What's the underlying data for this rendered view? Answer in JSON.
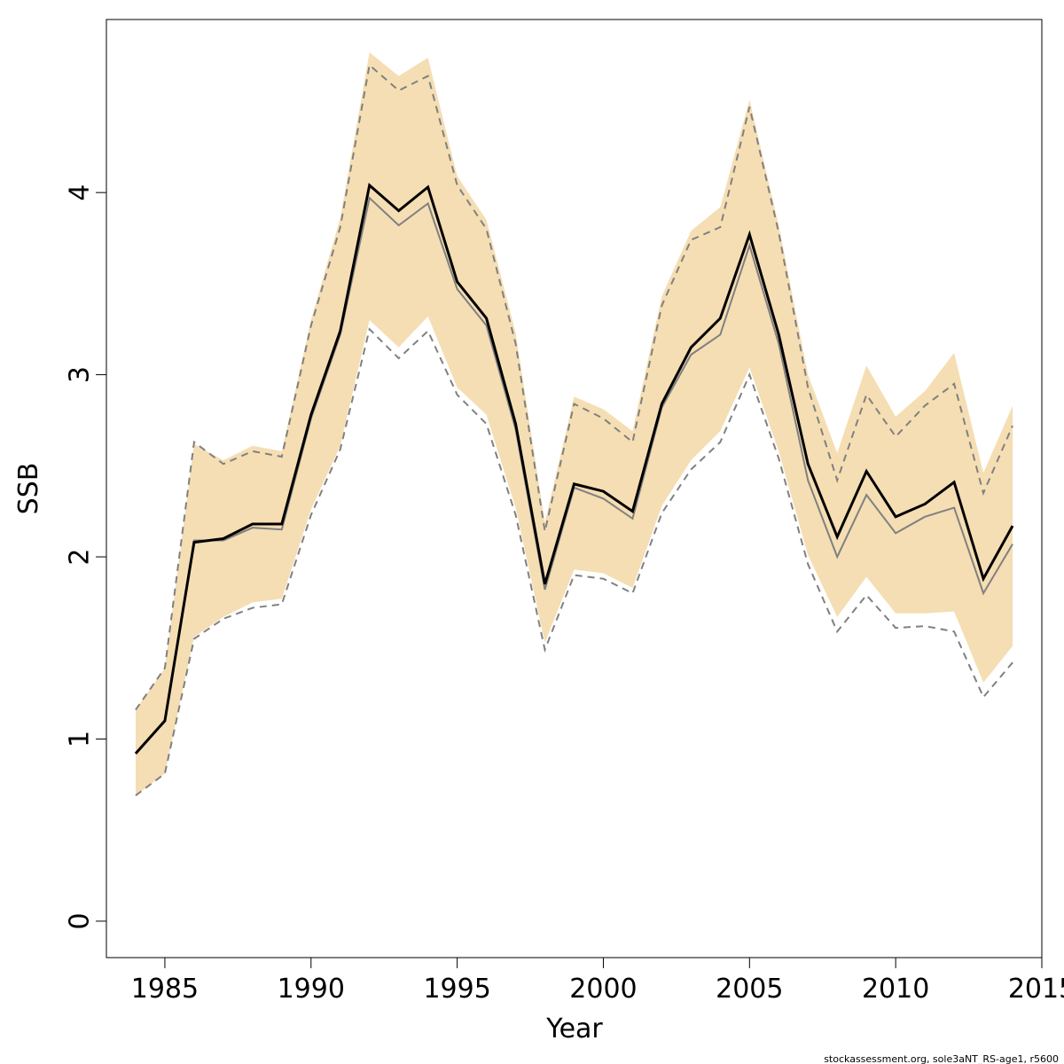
{
  "chart_data": {
    "type": "line",
    "xlabel": "Year",
    "ylabel": "SSB",
    "xlim": [
      1983,
      2015
    ],
    "ylim": [
      -0.2,
      4.95
    ],
    "x_ticks": [
      1985,
      1990,
      1995,
      2000,
      2005,
      2010,
      2015
    ],
    "y_ticks": [
      0,
      1,
      2,
      3,
      4
    ],
    "footer": "stockassessment.org, sole3aNT_RS-age1, r5600",
    "colors": {
      "band": "#f5deb3",
      "main": "#000000",
      "secondary": "#808080"
    },
    "x": [
      1984,
      1985,
      1986,
      1987,
      1988,
      1989,
      1990,
      1991,
      1992,
      1993,
      1994,
      1995,
      1996,
      1997,
      1998,
      1999,
      2000,
      2001,
      2002,
      2003,
      2004,
      2005,
      2006,
      2007,
      2008,
      2009,
      2010,
      2011,
      2012,
      2013,
      2014
    ],
    "series": [
      {
        "role": "band_upper",
        "values": [
          1.16,
          1.39,
          2.62,
          2.53,
          2.61,
          2.58,
          3.3,
          3.86,
          4.77,
          4.64,
          4.74,
          4.09,
          3.85,
          3.23,
          2.19,
          2.88,
          2.81,
          2.69,
          3.43,
          3.79,
          3.92,
          4.51,
          3.82,
          3.0,
          2.57,
          3.05,
          2.77,
          2.91,
          3.12,
          2.46,
          2.83
        ]
      },
      {
        "role": "band_lower",
        "values": [
          0.69,
          0.81,
          1.56,
          1.67,
          1.75,
          1.77,
          2.26,
          2.61,
          3.3,
          3.15,
          3.32,
          2.93,
          2.78,
          2.27,
          1.53,
          1.93,
          1.91,
          1.83,
          2.28,
          2.53,
          2.69,
          3.04,
          2.58,
          2.01,
          1.67,
          1.89,
          1.69,
          1.69,
          1.7,
          1.31,
          1.51
        ]
      },
      {
        "role": "main",
        "values": [
          0.92,
          1.1,
          2.08,
          2.1,
          2.18,
          2.18,
          2.78,
          3.24,
          4.04,
          3.9,
          4.03,
          3.51,
          3.31,
          2.73,
          1.85,
          2.4,
          2.36,
          2.25,
          2.84,
          3.15,
          3.31,
          3.77,
          3.22,
          2.51,
          2.11,
          2.47,
          2.22,
          2.29,
          2.41,
          1.88,
          2.17
        ]
      },
      {
        "role": "secondary",
        "values": [
          0.92,
          1.1,
          2.09,
          2.09,
          2.16,
          2.15,
          2.76,
          3.22,
          3.97,
          3.82,
          3.94,
          3.47,
          3.27,
          2.7,
          1.82,
          2.38,
          2.32,
          2.21,
          2.82,
          3.11,
          3.22,
          3.71,
          3.17,
          2.42,
          2.0,
          2.34,
          2.13,
          2.22,
          2.27,
          1.8,
          2.07
        ]
      },
      {
        "role": "upper_dashed",
        "values": [
          1.16,
          1.39,
          2.63,
          2.51,
          2.58,
          2.55,
          3.27,
          3.81,
          4.7,
          4.56,
          4.64,
          4.04,
          3.8,
          3.17,
          2.14,
          2.84,
          2.76,
          2.63,
          3.38,
          3.74,
          3.81,
          4.47,
          3.78,
          2.93,
          2.42,
          2.89,
          2.66,
          2.83,
          2.95,
          2.35,
          2.72
        ]
      },
      {
        "role": "lower_dashed",
        "values": [
          0.69,
          0.81,
          1.55,
          1.66,
          1.72,
          1.74,
          2.23,
          2.59,
          3.25,
          3.09,
          3.24,
          2.89,
          2.73,
          2.23,
          1.49,
          1.9,
          1.88,
          1.8,
          2.24,
          2.48,
          2.63,
          3.0,
          2.54,
          1.96,
          1.59,
          1.79,
          1.61,
          1.62,
          1.59,
          1.23,
          1.42
        ]
      }
    ]
  }
}
